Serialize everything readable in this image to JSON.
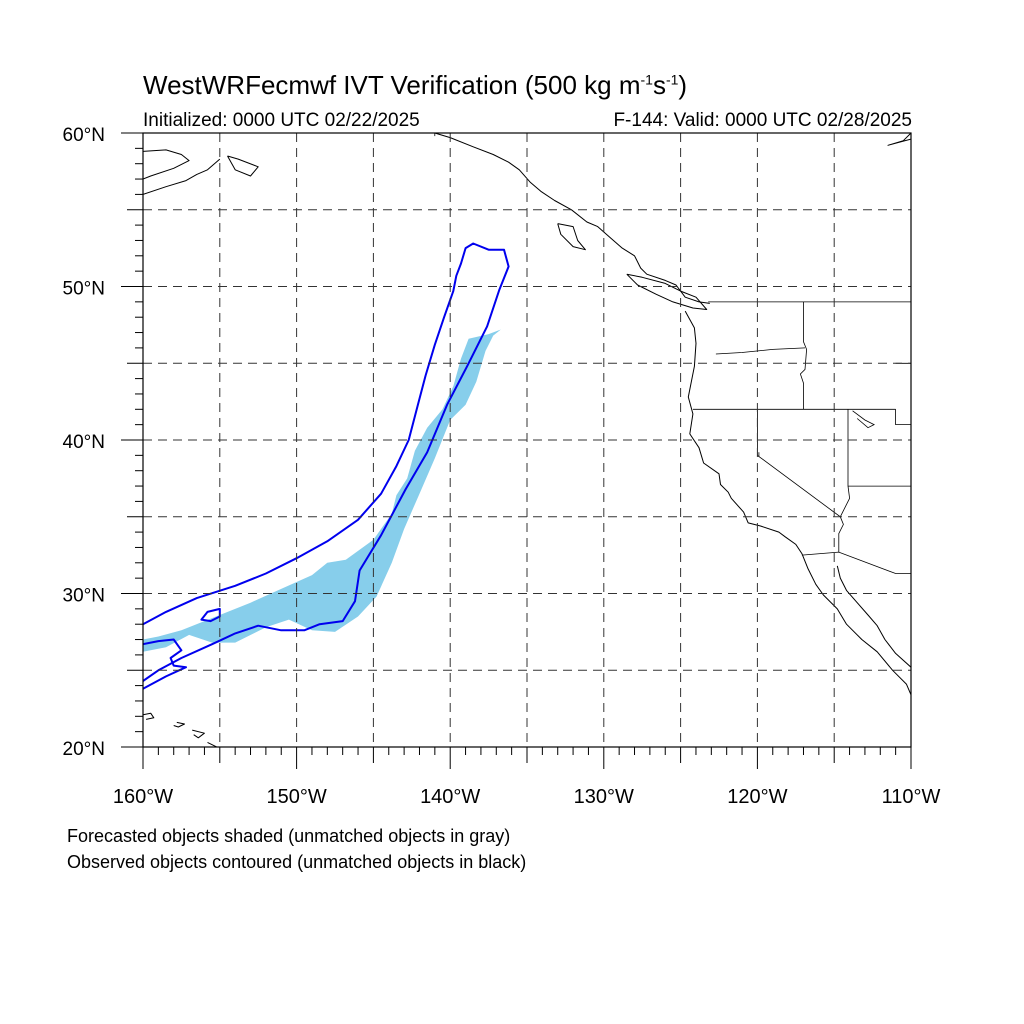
{
  "title": {
    "main_prefix": "WestWRFecmwf IVT Verification (500 kg m",
    "sup1": "-1",
    "middle": "s",
    "sup2": "-1",
    "suffix": ")"
  },
  "subtitle": {
    "initialized": "Initialized: 0000 UTC 02/22/2025",
    "valid": "F-144: Valid: 0000 UTC 02/28/2025"
  },
  "map": {
    "projection": "cylindrical-equidistant",
    "lon_range": [
      -160,
      -110
    ],
    "lat_range": [
      20,
      60
    ],
    "gridlines": "dashed",
    "lat_labels": [
      {
        "lat": 60,
        "text": "60°N"
      },
      {
        "lat": 50,
        "text": "50°N"
      },
      {
        "lat": 40,
        "text": "40°N"
      },
      {
        "lat": 30,
        "text": "30°N"
      },
      {
        "lat": 20,
        "text": "20°N"
      }
    ],
    "lon_labels": [
      {
        "lon": -160,
        "text": "160°W"
      },
      {
        "lon": -150,
        "text": "150°W"
      },
      {
        "lon": -140,
        "text": "140°W"
      },
      {
        "lon": -130,
        "text": "130°W"
      },
      {
        "lon": -120,
        "text": "120°W"
      },
      {
        "lon": -110,
        "text": "110°W"
      }
    ],
    "colors": {
      "forecast_fill": "#87ceeb",
      "observed_contour": "#0000ee",
      "coastline": "#000000",
      "grid": "#333333"
    },
    "forecast_object": [
      [
        -160,
        27.0
      ],
      [
        -159,
        27.2
      ],
      [
        -157.5,
        27.6
      ],
      [
        -155,
        28.6
      ],
      [
        -153,
        29.4
      ],
      [
        -151,
        30.3
      ],
      [
        -149,
        31.2
      ],
      [
        -148,
        32.0
      ],
      [
        -146.8,
        32.2
      ],
      [
        -145,
        33.5
      ],
      [
        -143.8,
        35.2
      ],
      [
        -143.5,
        36.4
      ],
      [
        -142.8,
        37.5
      ],
      [
        -142.3,
        39.3
      ],
      [
        -141.5,
        40.8
      ],
      [
        -140.5,
        42.0
      ],
      [
        -139.8,
        43.5
      ],
      [
        -139.3,
        45.3
      ],
      [
        -138.8,
        46.6
      ],
      [
        -137.5,
        46.9
      ],
      [
        -136.7,
        47.2
      ],
      [
        -137.2,
        46.8
      ],
      [
        -137.7,
        45.8
      ],
      [
        -138.3,
        43.8
      ],
      [
        -139.0,
        42.3
      ],
      [
        -140.0,
        41.3
      ],
      [
        -141.0,
        38.8
      ],
      [
        -142.0,
        36.5
      ],
      [
        -143.0,
        34.2
      ],
      [
        -143.8,
        32.0
      ],
      [
        -144.8,
        29.8
      ],
      [
        -146.0,
        28.5
      ],
      [
        -147.5,
        27.5
      ],
      [
        -149,
        27.6
      ],
      [
        -150.5,
        28.3
      ],
      [
        -152,
        27.8
      ],
      [
        -154,
        26.8
      ],
      [
        -155.5,
        26.8
      ],
      [
        -157,
        27.3
      ],
      [
        -158.5,
        26.5
      ],
      [
        -160,
        26.2
      ]
    ],
    "observed_main": [
      [
        -160,
        28.0
      ],
      [
        -158.5,
        28.8
      ],
      [
        -156.5,
        29.7
      ],
      [
        -154,
        30.5
      ],
      [
        -152,
        31.3
      ],
      [
        -150,
        32.3
      ],
      [
        -148,
        33.4
      ],
      [
        -146,
        34.8
      ],
      [
        -144.5,
        36.5
      ],
      [
        -143.5,
        38.3
      ],
      [
        -142.7,
        40.0
      ],
      [
        -142.1,
        42.3
      ],
      [
        -141.6,
        44.2
      ],
      [
        -141.0,
        46.2
      ],
      [
        -140.4,
        48.0
      ],
      [
        -139.8,
        49.7
      ],
      [
        -139.6,
        50.7
      ],
      [
        -139.3,
        51.5
      ],
      [
        -139.0,
        52.5
      ],
      [
        -138.5,
        52.8
      ],
      [
        -137.5,
        52.4
      ],
      [
        -136.5,
        52.4
      ],
      [
        -136.2,
        51.3
      ],
      [
        -136.8,
        49.8
      ],
      [
        -137.6,
        47.4
      ],
      [
        -138.9,
        44.8
      ],
      [
        -140.2,
        42.3
      ],
      [
        -141.5,
        39.2
      ],
      [
        -142.9,
        36.8
      ],
      [
        -144.5,
        33.8
      ],
      [
        -145.9,
        31.5
      ],
      [
        -146.2,
        29.5
      ],
      [
        -147.0,
        28.2
      ],
      [
        -148.5,
        28.0
      ],
      [
        -149.5,
        27.6
      ],
      [
        -151.0,
        27.6
      ],
      [
        -152.5,
        27.9
      ],
      [
        -154,
        27.4
      ],
      [
        -155.5,
        26.7
      ],
      [
        -157.5,
        25.8
      ],
      [
        -159,
        25.0
      ],
      [
        -160,
        24.3
      ]
    ],
    "observed_main_open": [
      [
        -160,
        23.8
      ],
      [
        -158.5,
        24.6
      ],
      [
        -157.2,
        25.2
      ],
      [
        -158.0,
        25.3
      ],
      [
        -158.2,
        25.8
      ],
      [
        -157.5,
        26.3
      ],
      [
        -158.0,
        27.0
      ],
      [
        -159.0,
        26.9
      ],
      [
        -160,
        26.7
      ]
    ],
    "observed_hole": [
      [
        -156.2,
        28.3
      ],
      [
        -155.8,
        28.8
      ],
      [
        -155.0,
        29.0
      ],
      [
        -155.0,
        28.5
      ],
      [
        -155.6,
        28.2
      ]
    ],
    "coastlines": [
      [
        [
          -160,
          58.8
        ],
        [
          -158.5,
          58.9
        ],
        [
          -157.5,
          58.6
        ],
        [
          -157.0,
          58.2
        ],
        [
          -158.0,
          57.7
        ],
        [
          -159.5,
          57.2
        ],
        [
          -160,
          57.0
        ]
      ],
      [
        [
          -160,
          56.0
        ],
        [
          -158.5,
          56.5
        ],
        [
          -157.2,
          56.9
        ],
        [
          -156.5,
          57.3
        ],
        [
          -155.8,
          57.6
        ],
        [
          -155.0,
          58.3
        ]
      ],
      [
        [
          -154.5,
          58.5
        ],
        [
          -154.0,
          57.6
        ],
        [
          -153.0,
          57.2
        ],
        [
          -152.5,
          57.8
        ],
        [
          -153.8,
          58.3
        ],
        [
          -154.5,
          58.5
        ]
      ],
      [
        [
          -141,
          60
        ],
        [
          -140.0,
          59.7
        ],
        [
          -138.5,
          59.1
        ],
        [
          -137.2,
          58.6
        ],
        [
          -136.2,
          58.1
        ],
        [
          -135.5,
          57.6
        ],
        [
          -134.8,
          56.8
        ],
        [
          -134.1,
          56.2
        ],
        [
          -133.2,
          55.6
        ],
        [
          -132.1,
          55.0
        ],
        [
          -131.1,
          54.2
        ],
        [
          -130.4,
          53.9
        ],
        [
          -129.6,
          53.2
        ],
        [
          -128.8,
          52.5
        ],
        [
          -128.0,
          52.0
        ],
        [
          -127.6,
          51.2
        ],
        [
          -127.2,
          50.8
        ],
        [
          -126.0,
          50.4
        ],
        [
          -125.3,
          50.1
        ],
        [
          -124.7,
          49.3
        ],
        [
          -123.8,
          49.0
        ],
        [
          -123.1,
          48.9
        ]
      ],
      [
        [
          -133.0,
          54.1
        ],
        [
          -132.0,
          53.9
        ],
        [
          -131.7,
          53.0
        ],
        [
          -131.2,
          52.4
        ],
        [
          -132.0,
          52.6
        ],
        [
          -132.8,
          53.4
        ],
        [
          -133.0,
          54.1
        ]
      ],
      [
        [
          -128.5,
          50.8
        ],
        [
          -127.5,
          50.6
        ],
        [
          -126.0,
          50.2
        ],
        [
          -125.0,
          49.7
        ],
        [
          -124.0,
          49.3
        ],
        [
          -123.3,
          48.5
        ],
        [
          -124.2,
          48.6
        ],
        [
          -125.5,
          49.0
        ],
        [
          -126.6,
          49.5
        ],
        [
          -127.8,
          50.1
        ],
        [
          -128.5,
          50.8
        ]
      ],
      [
        [
          -124.7,
          48.4
        ],
        [
          -124.1,
          47.3
        ],
        [
          -124.0,
          46.3
        ],
        [
          -124.1,
          44.8
        ],
        [
          -124.5,
          42.8
        ],
        [
          -124.2,
          41.7
        ],
        [
          -124.4,
          40.4
        ],
        [
          -123.8,
          39.5
        ],
        [
          -123.5,
          38.5
        ],
        [
          -122.5,
          37.8
        ],
        [
          -122.4,
          37.1
        ],
        [
          -121.9,
          36.6
        ],
        [
          -121.7,
          36.2
        ],
        [
          -120.9,
          35.3
        ],
        [
          -120.6,
          34.6
        ],
        [
          -119.8,
          34.4
        ],
        [
          -118.6,
          34.0
        ],
        [
          -118.2,
          33.7
        ],
        [
          -117.5,
          33.2
        ],
        [
          -117.1,
          32.6
        ],
        [
          -116.7,
          31.6
        ],
        [
          -116.2,
          30.6
        ],
        [
          -115.7,
          29.9
        ],
        [
          -114.8,
          29.0
        ],
        [
          -114.2,
          28.0
        ],
        [
          -113.2,
          27.0
        ],
        [
          -112.2,
          26.2
        ],
        [
          -111.2,
          25.0
        ],
        [
          -110.3,
          24.1
        ],
        [
          -110,
          23.4
        ]
      ],
      [
        [
          -114.8,
          31.8
        ],
        [
          -114.6,
          31.0
        ],
        [
          -114.2,
          30.2
        ],
        [
          -113.5,
          29.4
        ],
        [
          -112.8,
          28.6
        ],
        [
          -112.2,
          27.9
        ],
        [
          -111.7,
          27.0
        ],
        [
          -111.0,
          26.1
        ],
        [
          -110,
          25.2
        ]
      ],
      [
        [
          -110,
          60
        ],
        [
          -110.5,
          59.5
        ],
        [
          -111.5,
          59.2
        ],
        [
          -110,
          59.6
        ]
      ],
      [
        [
          -157.8,
          21.6
        ],
        [
          -157.3,
          21.5
        ],
        [
          -157.7,
          21.3
        ],
        [
          -158.0,
          21.4
        ]
      ],
      [
        [
          -156.8,
          21.1
        ],
        [
          -156.0,
          20.9
        ],
        [
          -156.4,
          20.6
        ],
        [
          -156.7,
          20.8
        ]
      ],
      [
        [
          -160,
          22.1
        ],
        [
          -159.5,
          22.2
        ],
        [
          -159.3,
          21.9
        ],
        [
          -159.8,
          21.8
        ]
      ],
      [
        [
          -155.8,
          20.3
        ],
        [
          -155.0,
          19.9
        ]
      ]
    ],
    "borders": [
      [
        [
          -141,
          60
        ],
        [
          -141,
          59.8
        ]
      ],
      [
        [
          -123.2,
          49
        ],
        [
          -110,
          49
        ]
      ],
      [
        [
          -124.2,
          42
        ],
        [
          -111,
          42
        ]
      ],
      [
        [
          -117.0,
          49
        ],
        [
          -117.0,
          46.4
        ],
        [
          -116.8,
          45.9
        ],
        [
          -116.9,
          44.6
        ],
        [
          -117.2,
          44.3
        ],
        [
          -117.0,
          43.7
        ],
        [
          -117.0,
          42
        ]
      ],
      [
        [
          -120,
          42
        ],
        [
          -120,
          39
        ],
        [
          -114.6,
          35.0
        ],
        [
          -114.4,
          34.5
        ],
        [
          -114.7,
          33.9
        ],
        [
          -114.7,
          32.7
        ]
      ],
      [
        [
          -114.1,
          42
        ],
        [
          -114.1,
          37
        ],
        [
          -114.0,
          36.2
        ],
        [
          -114.6,
          35.0
        ]
      ],
      [
        [
          -111.0,
          45
        ],
        [
          -110,
          45
        ],
        [
          -110,
          41
        ]
      ],
      [
        [
          -111,
          42
        ],
        [
          -111,
          41
        ],
        [
          -110,
          41
        ]
      ],
      [
        [
          -114.1,
          37
        ],
        [
          -110,
          37
        ]
      ],
      [
        [
          -117.1,
          32.5
        ],
        [
          -114.7,
          32.7
        ],
        [
          -111.0,
          31.3
        ],
        [
          -110,
          31.3
        ]
      ],
      [
        [
          -122.7,
          45.6
        ],
        [
          -121.0,
          45.7
        ],
        [
          -119.0,
          45.9
        ],
        [
          -116.9,
          46.0
        ]
      ],
      [
        [
          -113.8,
          41.9
        ],
        [
          -113.0,
          41.3
        ],
        [
          -112.4,
          41.0
        ],
        [
          -112.8,
          40.8
        ],
        [
          -113.5,
          41.4
        ]
      ],
      [
        [
          -119.9,
          39.2
        ],
        [
          -119.9,
          38.9
        ]
      ]
    ]
  },
  "notes": {
    "line1": "Forecasted objects shaded (unmatched objects in gray)",
    "line2": "Observed objects contoured (unmatched objects in black)"
  }
}
